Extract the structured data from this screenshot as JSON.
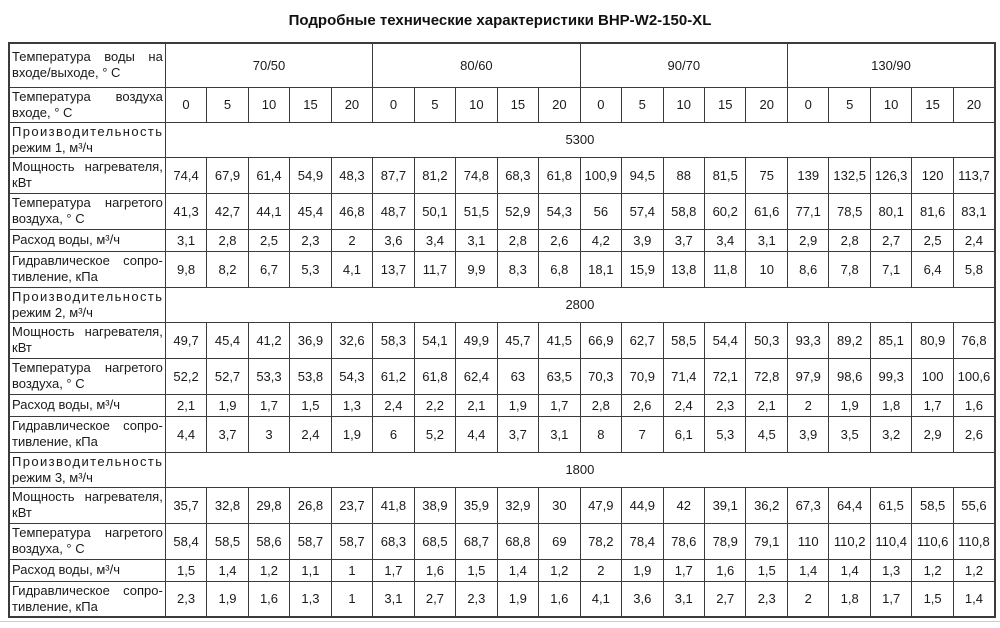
{
  "title": "Подробные технические характеристики BHP-W2-150-XL",
  "colors": {
    "border": "#3b3b3b",
    "text": "#1a1a1a",
    "background": "#ffffff",
    "bottom_rule": "#cccccc"
  },
  "chart_data": {
    "type": "table",
    "title": "Подробные технические характеристики BHP-W2-150-XL",
    "header": {
      "water_temp_label": "Температура воды на входе/выходе, ° С",
      "air_temp_label": "Температура воздуха входе, ° С",
      "water_temp_groups": [
        "70/50",
        "80/60",
        "90/70",
        "130/90"
      ],
      "air_temps": [
        "0",
        "5",
        "10",
        "15",
        "20"
      ]
    },
    "row_labels": {
      "power": "Мощность нагревателя, кВт",
      "heated_air_temp": "Температура нагретого воздуха, ° С",
      "water_flow": "Расход воды, м³/ч",
      "hydraulic_resistance": "Гидравлическое сопро-тивление, кПа"
    },
    "modes": [
      {
        "label_word1": "Производительность",
        "label_rest": "режим 1, м³/ч",
        "capacity": "5300",
        "rows": {
          "power": [
            "74,4",
            "67,9",
            "61,4",
            "54,9",
            "48,3",
            "87,7",
            "81,2",
            "74,8",
            "68,3",
            "61,8",
            "100,9",
            "94,5",
            "88",
            "81,5",
            "75",
            "139",
            "132,5",
            "126,3",
            "120",
            "113,7"
          ],
          "heated_air_temp": [
            "41,3",
            "42,7",
            "44,1",
            "45,4",
            "46,8",
            "48,7",
            "50,1",
            "51,5",
            "52,9",
            "54,3",
            "56",
            "57,4",
            "58,8",
            "60,2",
            "61,6",
            "77,1",
            "78,5",
            "80,1",
            "81,6",
            "83,1"
          ],
          "water_flow": [
            "3,1",
            "2,8",
            "2,5",
            "2,3",
            "2",
            "3,6",
            "3,4",
            "3,1",
            "2,8",
            "2,6",
            "4,2",
            "3,9",
            "3,7",
            "3,4",
            "3,1",
            "2,9",
            "2,8",
            "2,7",
            "2,5",
            "2,4"
          ],
          "hydraulic_resistance": [
            "9,8",
            "8,2",
            "6,7",
            "5,3",
            "4,1",
            "13,7",
            "11,7",
            "9,9",
            "8,3",
            "6,8",
            "18,1",
            "15,9",
            "13,8",
            "11,8",
            "10",
            "8,6",
            "7,8",
            "7,1",
            "6,4",
            "5,8"
          ]
        }
      },
      {
        "label_word1": "Производительность",
        "label_rest": "режим 2, м³/ч",
        "capacity": "2800",
        "rows": {
          "power": [
            "49,7",
            "45,4",
            "41,2",
            "36,9",
            "32,6",
            "58,3",
            "54,1",
            "49,9",
            "45,7",
            "41,5",
            "66,9",
            "62,7",
            "58,5",
            "54,4",
            "50,3",
            "93,3",
            "89,2",
            "85,1",
            "80,9",
            "76,8"
          ],
          "heated_air_temp": [
            "52,2",
            "52,7",
            "53,3",
            "53,8",
            "54,3",
            "61,2",
            "61,8",
            "62,4",
            "63",
            "63,5",
            "70,3",
            "70,9",
            "71,4",
            "72,1",
            "72,8",
            "97,9",
            "98,6",
            "99,3",
            "100",
            "100,6"
          ],
          "water_flow": [
            "2,1",
            "1,9",
            "1,7",
            "1,5",
            "1,3",
            "2,4",
            "2,2",
            "2,1",
            "1,9",
            "1,7",
            "2,8",
            "2,6",
            "2,4",
            "2,3",
            "2,1",
            "2",
            "1,9",
            "1,8",
            "1,7",
            "1,6"
          ],
          "hydraulic_resistance": [
            "4,4",
            "3,7",
            "3",
            "2,4",
            "1,9",
            "6",
            "5,2",
            "4,4",
            "3,7",
            "3,1",
            "8",
            "7",
            "6,1",
            "5,3",
            "4,5",
            "3,9",
            "3,5",
            "3,2",
            "2,9",
            "2,6"
          ]
        }
      },
      {
        "label_word1": "Производительность",
        "label_rest": "режим 3, м³/ч",
        "capacity": "1800",
        "rows": {
          "power": [
            "35,7",
            "32,8",
            "29,8",
            "26,8",
            "23,7",
            "41,8",
            "38,9",
            "35,9",
            "32,9",
            "30",
            "47,9",
            "44,9",
            "42",
            "39,1",
            "36,2",
            "67,3",
            "64,4",
            "61,5",
            "58,5",
            "55,6"
          ],
          "heated_air_temp": [
            "58,4",
            "58,5",
            "58,6",
            "58,7",
            "58,7",
            "68,3",
            "68,5",
            "68,7",
            "68,8",
            "69",
            "78,2",
            "78,4",
            "78,6",
            "78,9",
            "79,1",
            "110",
            "110,2",
            "110,4",
            "110,6",
            "110,8"
          ],
          "water_flow": [
            "1,5",
            "1,4",
            "1,2",
            "1,1",
            "1",
            "1,7",
            "1,6",
            "1,5",
            "1,4",
            "1,2",
            "2",
            "1,9",
            "1,7",
            "1,6",
            "1,5",
            "1,4",
            "1,4",
            "1,3",
            "1,2",
            "1,2"
          ],
          "hydraulic_resistance": [
            "2,3",
            "1,9",
            "1,6",
            "1,3",
            "1",
            "3,1",
            "2,7",
            "2,3",
            "1,9",
            "1,6",
            "4,1",
            "3,6",
            "3,1",
            "2,7",
            "2,3",
            "2",
            "1,8",
            "1,7",
            "1,5",
            "1,4"
          ]
        }
      }
    ]
  }
}
